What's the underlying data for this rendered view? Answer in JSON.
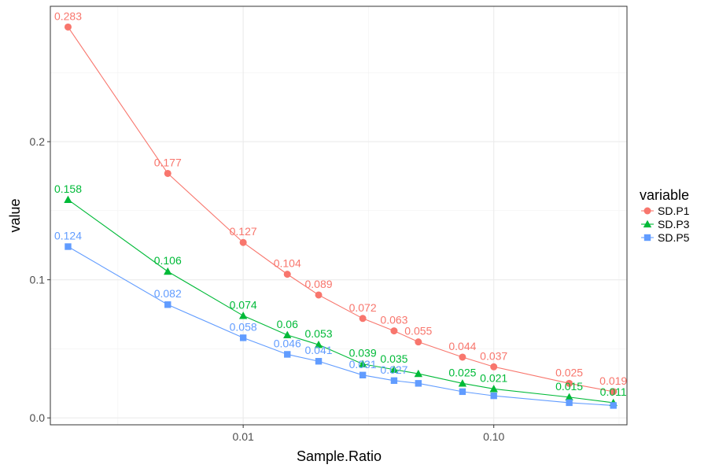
{
  "chart_data": {
    "type": "line",
    "title": "",
    "xlabel": "Sample.Ratio",
    "ylabel": "value",
    "x_scale": "log10",
    "xlim": [
      0.0017,
      0.34
    ],
    "ylim": [
      -0.005,
      0.298
    ],
    "x_ticks": [
      {
        "value": 0.01,
        "label": "0.01"
      },
      {
        "value": 0.1,
        "label": "0.10"
      }
    ],
    "y_ticks": [
      {
        "value": 0.0,
        "label": "0.0"
      },
      {
        "value": 0.1,
        "label": "0.1"
      },
      {
        "value": 0.2,
        "label": "0.2"
      }
    ],
    "grid": true,
    "legend": {
      "title": "variable",
      "position": "right"
    },
    "x": [
      0.002,
      0.005,
      0.01,
      0.015,
      0.02,
      0.03,
      0.04,
      0.05,
      0.075,
      0.1,
      0.2,
      0.3
    ],
    "series": [
      {
        "name": "SD.P1",
        "color": "#F8766D",
        "marker": "circle",
        "values": [
          0.283,
          0.177,
          0.127,
          0.104,
          0.089,
          0.072,
          0.063,
          0.055,
          0.044,
          0.037,
          0.025,
          0.019
        ],
        "labels": [
          "0.283",
          "0.177",
          "0.127",
          "0.104",
          "0.089",
          "0.072",
          "0.063",
          "0.055",
          "0.044",
          "0.037",
          "0.025",
          "0.019"
        ]
      },
      {
        "name": "SD.P3",
        "color": "#00BA38",
        "marker": "triangle",
        "values": [
          0.158,
          0.106,
          0.074,
          0.06,
          0.053,
          0.039,
          0.035,
          0.032,
          0.025,
          0.021,
          0.015,
          0.011
        ],
        "labels": [
          "0.158",
          "0.106",
          "0.074",
          "0.06",
          "0.053",
          "0.039",
          "0.035",
          "",
          "0.025",
          "0.021",
          "0.015",
          "0.011"
        ]
      },
      {
        "name": "SD.P5",
        "color": "#619CFF",
        "marker": "square",
        "values": [
          0.124,
          0.082,
          0.058,
          0.046,
          0.041,
          0.031,
          0.027,
          0.025,
          0.019,
          0.016,
          0.011,
          0.009
        ],
        "labels": [
          "0.124",
          "0.082",
          "0.058",
          "0.046",
          "0.041",
          "0.031",
          "0.027",
          "",
          "",
          "",
          "",
          ""
        ]
      }
    ]
  }
}
